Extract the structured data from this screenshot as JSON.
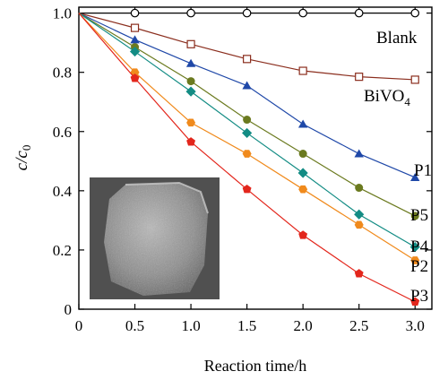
{
  "chart_data": {
    "type": "line",
    "xlabel": "Reaction time/h",
    "ylabel_main": "c/c",
    "ylabel_sub": "0",
    "xlim": [
      0,
      3.15
    ],
    "ylim": [
      0,
      1.02
    ],
    "xticks": [
      0,
      0.5,
      1.0,
      1.5,
      2.0,
      2.5,
      3.0
    ],
    "xtick_labels": [
      "0",
      "0.5",
      "1.0",
      "1.5",
      "2.0",
      "2.5",
      "3.0"
    ],
    "yticks": [
      0,
      0.2,
      0.4,
      0.6,
      0.8,
      1.0
    ],
    "ytick_labels": [
      "0",
      "0.2",
      "0.4",
      "0.6",
      "0.8",
      "1.0"
    ],
    "x": [
      0,
      0.5,
      1.0,
      1.5,
      2.0,
      2.5,
      3.0
    ],
    "grid": false,
    "series": [
      {
        "name": "Blank",
        "label_main": "Blank",
        "label_sub": "",
        "color": "#000000",
        "marker": "circle-open",
        "values": [
          1.0,
          1.0,
          1.0,
          1.0,
          1.0,
          1.0,
          1.0
        ]
      },
      {
        "name": "BiVO4",
        "label_main": "BiVO",
        "label_sub": "4",
        "color": "#8b2e1e",
        "marker": "square-open",
        "values": [
          1.0,
          0.95,
          0.895,
          0.845,
          0.805,
          0.785,
          0.775
        ]
      },
      {
        "name": "P1",
        "label_main": "P1",
        "label_sub": "",
        "color": "#1f48a8",
        "marker": "triangle",
        "values": [
          1.0,
          0.91,
          0.83,
          0.755,
          0.625,
          0.525,
          0.445
        ]
      },
      {
        "name": "P5",
        "label_main": "P5",
        "label_sub": "",
        "color": "#6b7a1f",
        "marker": "circle",
        "values": [
          1.0,
          0.885,
          0.77,
          0.64,
          0.525,
          0.41,
          0.315
        ]
      },
      {
        "name": "P4",
        "label_main": "P4",
        "label_sub": "",
        "color": "#138c84",
        "marker": "diamond",
        "values": [
          1.0,
          0.87,
          0.735,
          0.595,
          0.46,
          0.32,
          0.21
        ]
      },
      {
        "name": "P2",
        "label_main": "P2",
        "label_sub": "",
        "color": "#f08a1c",
        "marker": "hexagon",
        "values": [
          1.0,
          0.8,
          0.63,
          0.525,
          0.405,
          0.285,
          0.165
        ]
      },
      {
        "name": "P3",
        "label_main": "P3",
        "label_sub": "",
        "color": "#e3261c",
        "marker": "pentagon",
        "values": [
          1.0,
          0.78,
          0.565,
          0.405,
          0.25,
          0.12,
          0.025
        ]
      }
    ],
    "inset": {
      "kind": "SEM micrograph",
      "description_visible": false
    }
  }
}
